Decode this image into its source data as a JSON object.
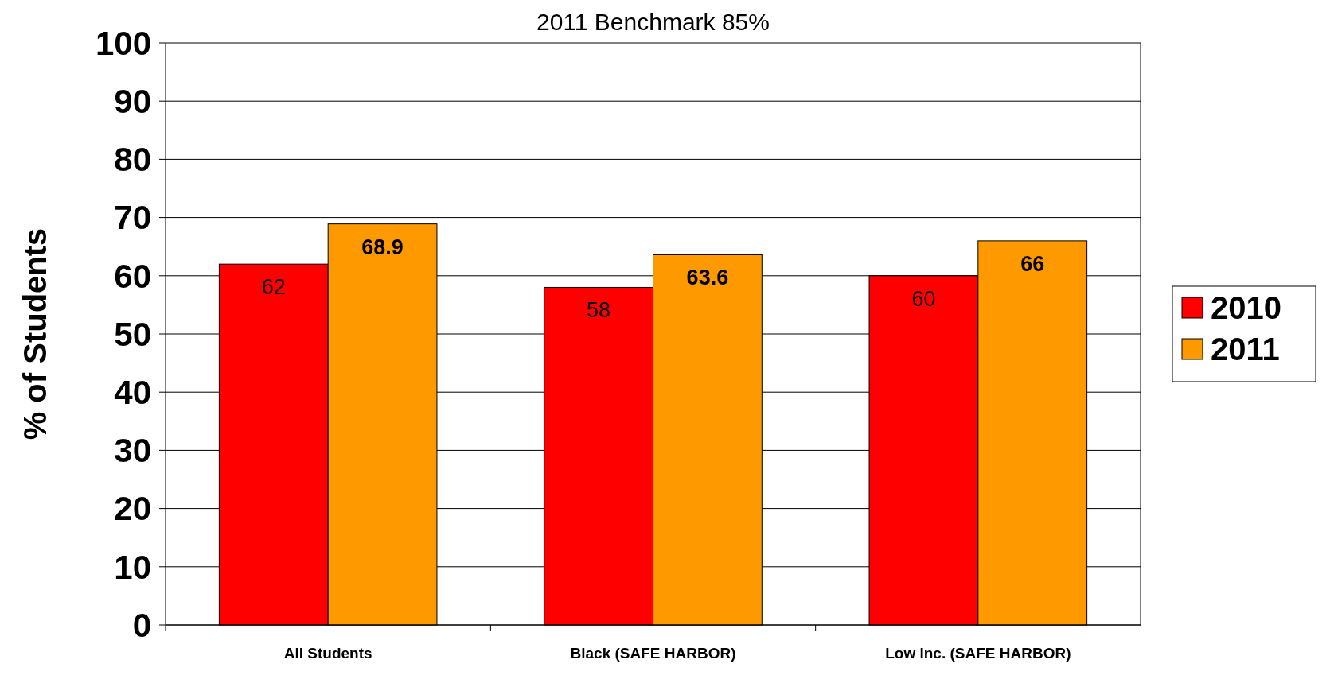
{
  "chart_data": {
    "type": "bar",
    "title": "2011 Benchmark 85%",
    "ylabel": "% of Students",
    "categories": [
      "All Students",
      "Black (SAFE HARBOR)",
      "Low Inc. (SAFE HARBOR)"
    ],
    "series": [
      {
        "name": "2010",
        "color": "#ff0000",
        "values": [
          62,
          58,
          60
        ]
      },
      {
        "name": "2011",
        "color": "#ff9900",
        "values": [
          68.9,
          63.6,
          66
        ]
      }
    ],
    "ylim": [
      0,
      100
    ],
    "yticks": [
      0,
      10,
      20,
      30,
      40,
      50,
      60,
      70,
      80,
      90,
      100
    ],
    "grid": "y",
    "legend": "right",
    "data_labels": true
  }
}
